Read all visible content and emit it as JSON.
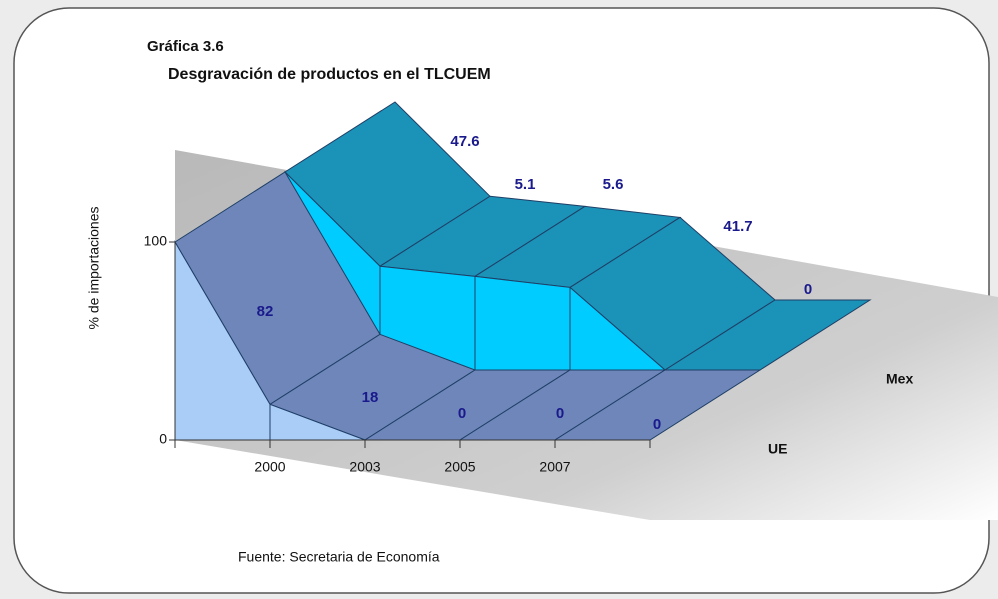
{
  "chart_data": {
    "type": "area3d",
    "title": "Gráfica 3.6",
    "subtitle": "Desgravación de productos en el TLCUEM",
    "y_label": "% de importaciones",
    "source": "Fuente: Secretaria de Economía",
    "categories": [
      null,
      "2000",
      "2003",
      "2005",
      "2007",
      null
    ],
    "series": [
      {
        "name": "UE",
        "color": "#a9cdf7",
        "top_color": "#6e86b9",
        "values": [
          100,
          18,
          0,
          0,
          0,
          0
        ]
      },
      {
        "name": "Mex",
        "color": "#00ccff",
        "top_color": "#1b92b8",
        "values": [
          100,
          52.4,
          47.3,
          41.7,
          0,
          0
        ]
      }
    ],
    "annotations": [
      "82",
      "18",
      "0",
      "0",
      "0",
      "47.6",
      "5.1",
      "5.6",
      "41.7",
      "0"
    ],
    "ylim": [
      0,
      100
    ],
    "yticks": [
      0,
      100
    ]
  }
}
